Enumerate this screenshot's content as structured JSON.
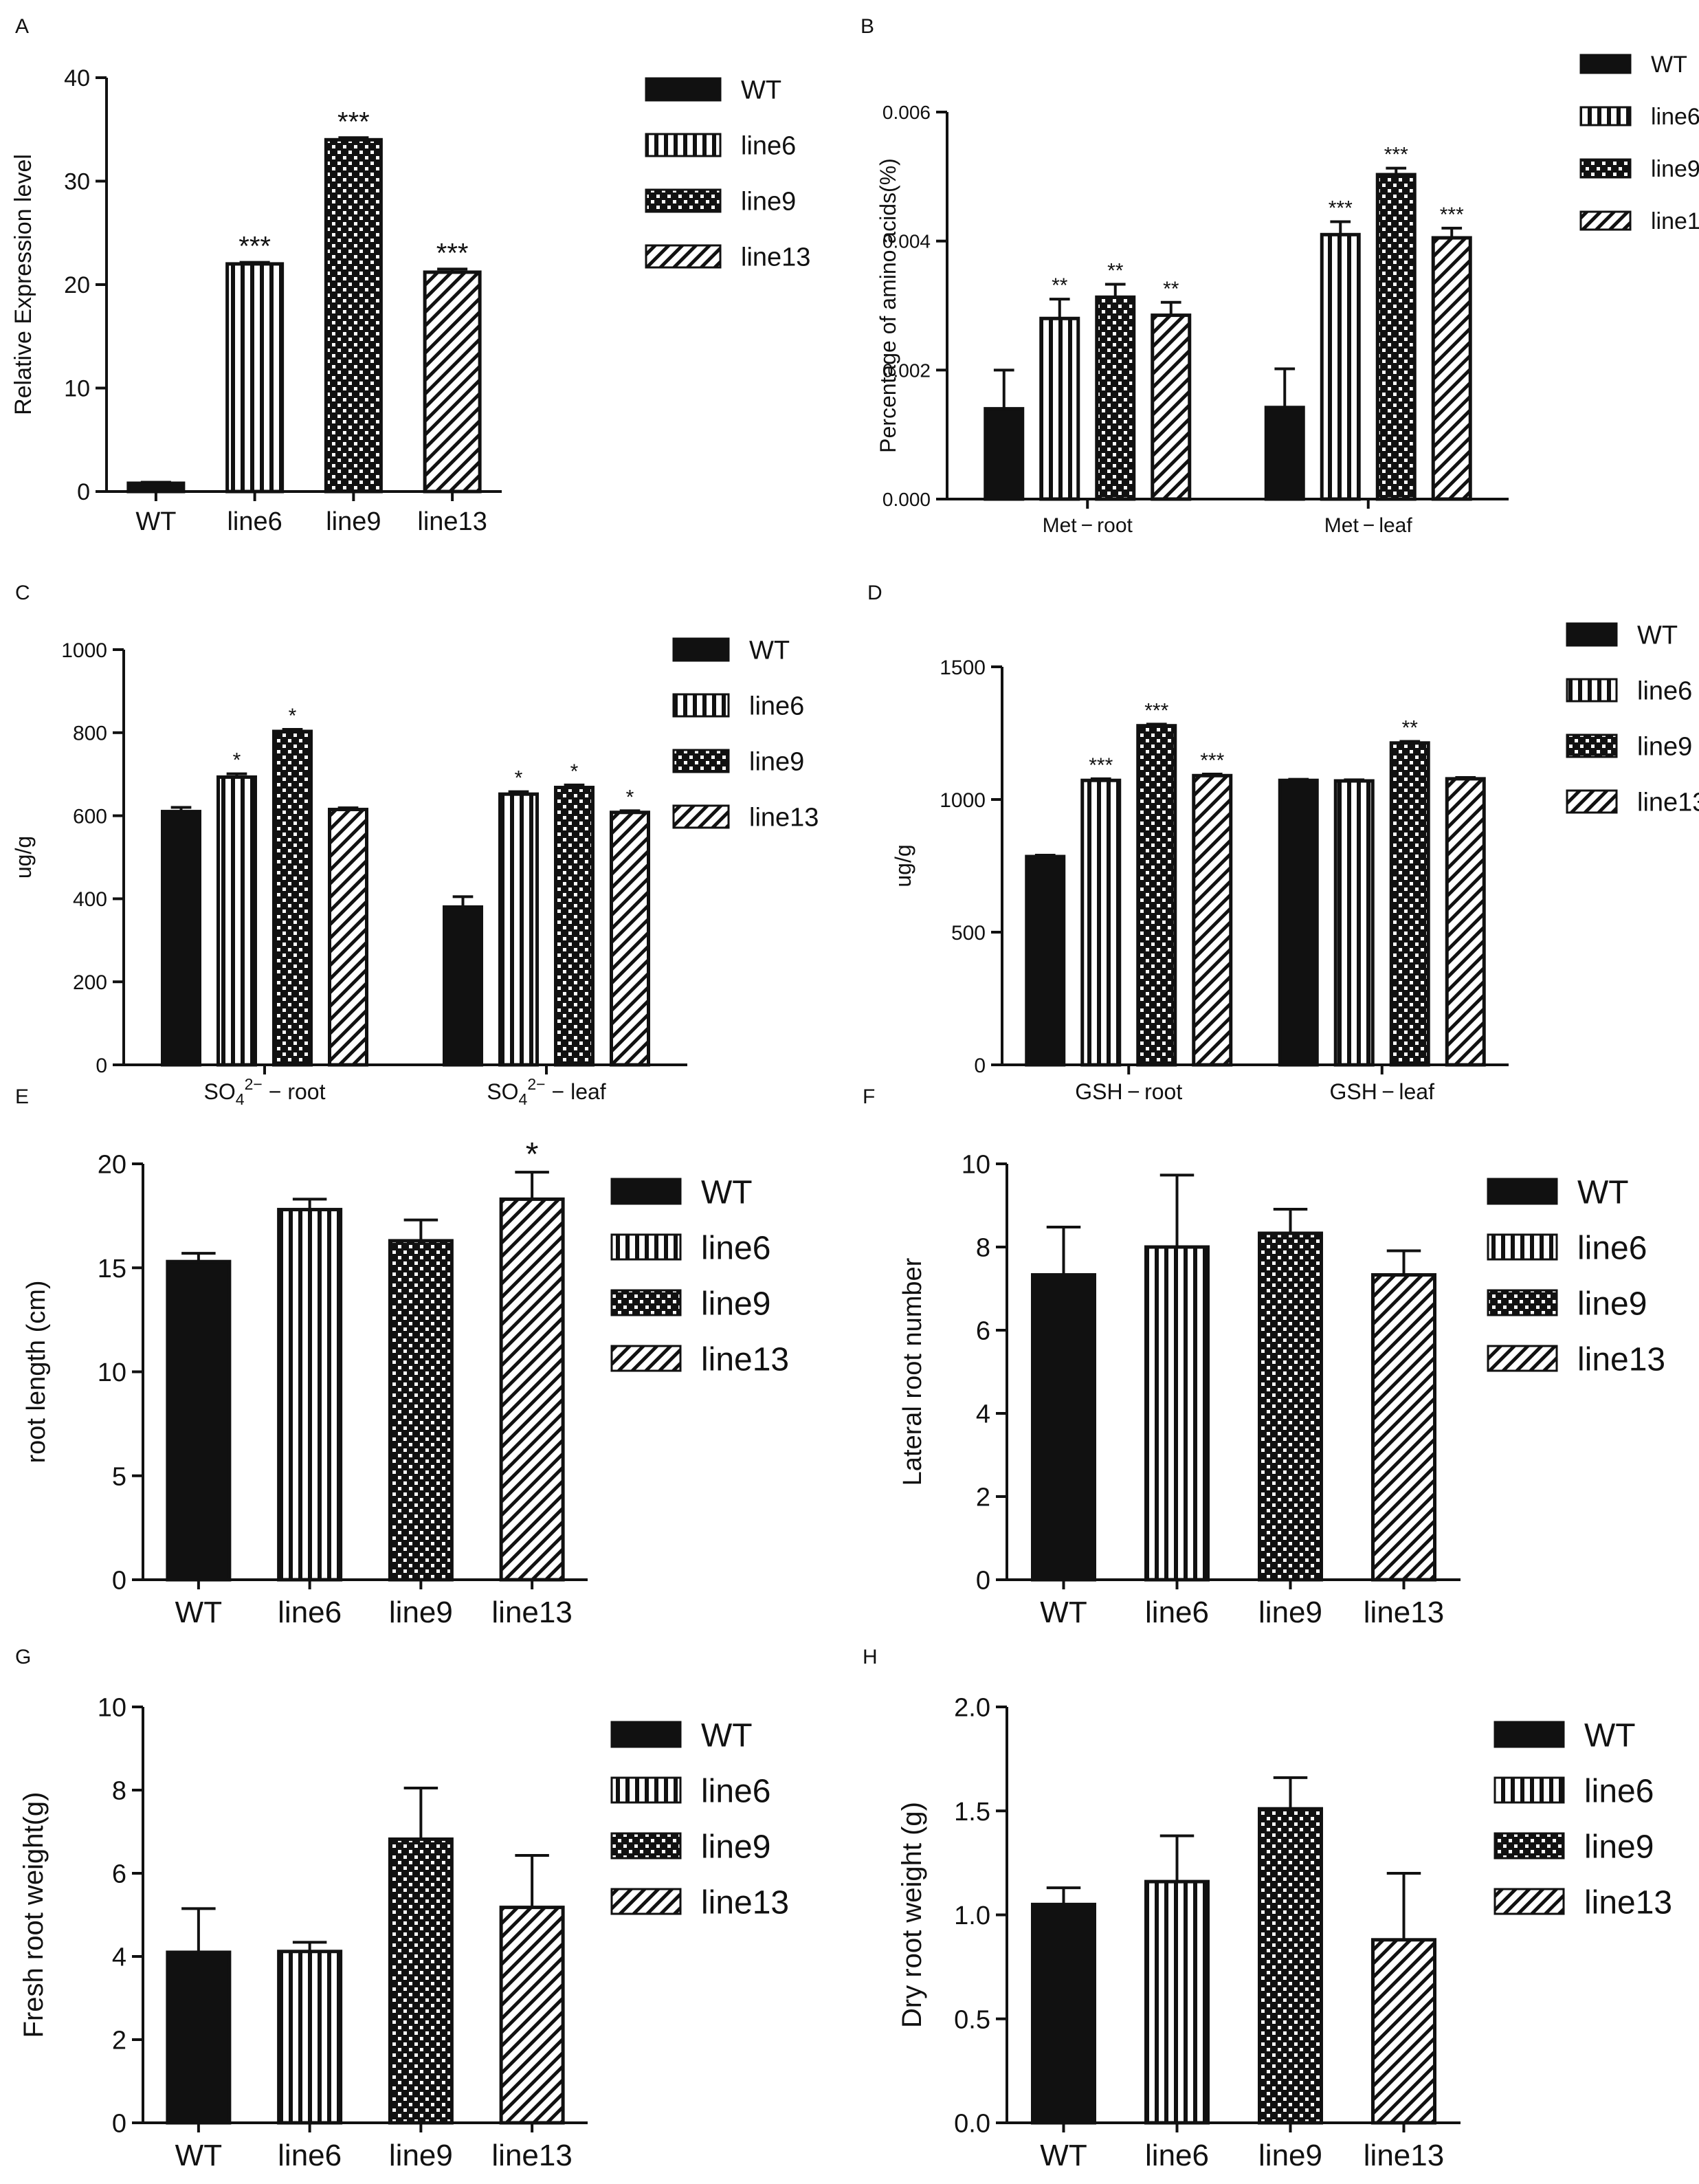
{
  "colors": {
    "ink": "#111111",
    "background": "#ffffff"
  },
  "legend_entries": [
    {
      "label": "WT",
      "pattern": "solid"
    },
    {
      "label": "line6",
      "pattern": "vertical-stripes"
    },
    {
      "label": "line9",
      "pattern": "checker"
    },
    {
      "label": "line13",
      "pattern": "diagonal-stripes"
    }
  ],
  "chart_data": [
    {
      "panel": "A",
      "type": "bar",
      "title": "",
      "xlabel": "",
      "ylabel": "Relative Expression level",
      "ylim": [
        0,
        40
      ],
      "yticks": [
        0,
        10,
        20,
        30,
        40
      ],
      "categories": [
        "WT",
        "line6",
        "line9",
        "line13"
      ],
      "values": [
        0.8,
        22.0,
        34.0,
        21.2
      ],
      "errors": [
        0.1,
        0.15,
        0.2,
        0.3
      ],
      "significance": [
        "",
        "***",
        "***",
        "***"
      ],
      "legend": [
        "WT",
        "line6",
        "line9",
        "line13"
      ]
    },
    {
      "panel": "B",
      "type": "bar",
      "title": "",
      "xlabel": "",
      "ylabel": "Percentage of amino acids(%)",
      "ylim": [
        0,
        0.006
      ],
      "yticks": [
        "0.000",
        "0.002",
        "0.004",
        "0.006"
      ],
      "groups": [
        "Met − root",
        "Met − leaf"
      ],
      "series": [
        {
          "name": "WT",
          "values": [
            0.0014,
            0.00142
          ],
          "errors": [
            0.0006,
            0.0006
          ],
          "significance": [
            "",
            ""
          ]
        },
        {
          "name": "line6",
          "values": [
            0.0028,
            0.0041
          ],
          "errors": [
            0.0003,
            0.0002
          ],
          "significance": [
            "**",
            "***"
          ]
        },
        {
          "name": "line9",
          "values": [
            0.00313,
            0.00503
          ],
          "errors": [
            0.0002,
            0.0001
          ],
          "significance": [
            "**",
            "***"
          ]
        },
        {
          "name": "line13",
          "values": [
            0.00285,
            0.00405
          ],
          "errors": [
            0.0002,
            0.00015
          ],
          "significance": [
            "**",
            "***"
          ]
        }
      ]
    },
    {
      "panel": "C",
      "type": "bar",
      "title": "",
      "xlabel": "",
      "ylabel": "ug/g",
      "ylim": [
        0,
        1000
      ],
      "yticks": [
        0,
        200,
        400,
        600,
        800,
        1000
      ],
      "groups": [
        {
          "pre": "SO",
          "sub": "4",
          "sup": "2−",
          "post": " − root"
        },
        {
          "pre": "SO",
          "sub": "4",
          "sup": "2−",
          "post": " − leaf"
        }
      ],
      "series": [
        {
          "name": "WT",
          "values": [
            610,
            380
          ],
          "errors": [
            10,
            25
          ],
          "significance": [
            "",
            ""
          ]
        },
        {
          "name": "line6",
          "values": [
            693,
            652
          ],
          "errors": [
            8,
            6
          ],
          "significance": [
            "*",
            "*"
          ]
        },
        {
          "name": "line9",
          "values": [
            803,
            668
          ],
          "errors": [
            5,
            6
          ],
          "significance": [
            "*",
            "*"
          ]
        },
        {
          "name": "line13",
          "values": [
            615,
            608
          ],
          "errors": [
            4,
            4
          ],
          "significance": [
            "",
            "*"
          ]
        }
      ]
    },
    {
      "panel": "D",
      "type": "bar",
      "title": "",
      "xlabel": "",
      "ylabel": "ug/g",
      "ylim": [
        0,
        1500
      ],
      "yticks": [
        0,
        500,
        1000,
        1500
      ],
      "groups": [
        "GSH − root",
        "GSH − leaf"
      ],
      "series": [
        {
          "name": "WT",
          "values": [
            785,
            1072
          ],
          "errors": [
            5,
            4
          ],
          "significance": [
            "",
            ""
          ]
        },
        {
          "name": "line6",
          "values": [
            1072,
            1070
          ],
          "errors": [
            6,
            4
          ],
          "significance": [
            "***",
            ""
          ]
        },
        {
          "name": "line9",
          "values": [
            1278,
            1213
          ],
          "errors": [
            6,
            6
          ],
          "significance": [
            "***",
            "**"
          ]
        },
        {
          "name": "line13",
          "values": [
            1090,
            1078
          ],
          "errors": [
            6,
            5
          ],
          "significance": [
            "***",
            ""
          ]
        }
      ]
    },
    {
      "panel": "E",
      "type": "bar",
      "title": "",
      "xlabel": "",
      "ylabel": "root length (cm)",
      "ylim": [
        0,
        20
      ],
      "yticks": [
        0,
        5,
        10,
        15,
        20
      ],
      "categories": [
        "WT",
        "line6",
        "line9",
        "line13"
      ],
      "values": [
        15.3,
        17.8,
        16.3,
        18.3
      ],
      "errors": [
        0.4,
        0.5,
        1.0,
        1.3
      ],
      "significance": [
        "",
        "",
        "",
        "*"
      ],
      "legend": [
        "WT",
        "line6",
        "line9",
        "line13"
      ]
    },
    {
      "panel": "F",
      "type": "bar",
      "title": "",
      "xlabel": "",
      "ylabel": "Lateral root number",
      "ylim": [
        0,
        10
      ],
      "yticks": [
        0,
        2,
        4,
        6,
        8,
        10
      ],
      "categories": [
        "WT",
        "line6",
        "line9",
        "line13"
      ],
      "values": [
        7.33,
        8.0,
        8.33,
        7.33
      ],
      "errors": [
        1.15,
        1.73,
        0.58,
        0.58
      ],
      "significance": [
        "",
        "",
        "",
        ""
      ],
      "legend": [
        "WT",
        "line6",
        "line9",
        "line13"
      ]
    },
    {
      "panel": "G",
      "type": "bar",
      "title": "",
      "xlabel": "",
      "ylabel": "Fresh root weight(g)",
      "ylim": [
        0,
        10
      ],
      "yticks": [
        0,
        2,
        4,
        6,
        8,
        10
      ],
      "categories": [
        "WT",
        "line6",
        "line9",
        "line13"
      ],
      "values": [
        4.1,
        4.12,
        6.82,
        5.18
      ],
      "errors": [
        1.05,
        0.22,
        1.23,
        1.25
      ],
      "significance": [
        "",
        "",
        "",
        ""
      ],
      "legend": [
        "WT",
        "line6",
        "line9",
        "line13"
      ]
    },
    {
      "panel": "H",
      "type": "bar",
      "title": "",
      "xlabel": "",
      "ylabel": "Dry root weight (g)",
      "ylim": [
        0,
        2.0
      ],
      "yticks": [
        "0.0",
        "0.5",
        "1.0",
        "1.5",
        "2.0"
      ],
      "categories": [
        "WT",
        "line6",
        "line9",
        "line13"
      ],
      "values": [
        1.05,
        1.16,
        1.51,
        0.88
      ],
      "errors": [
        0.08,
        0.22,
        0.15,
        0.32
      ],
      "significance": [
        "",
        "",
        "",
        ""
      ],
      "legend": [
        "WT",
        "line6",
        "line9",
        "line13"
      ]
    }
  ]
}
